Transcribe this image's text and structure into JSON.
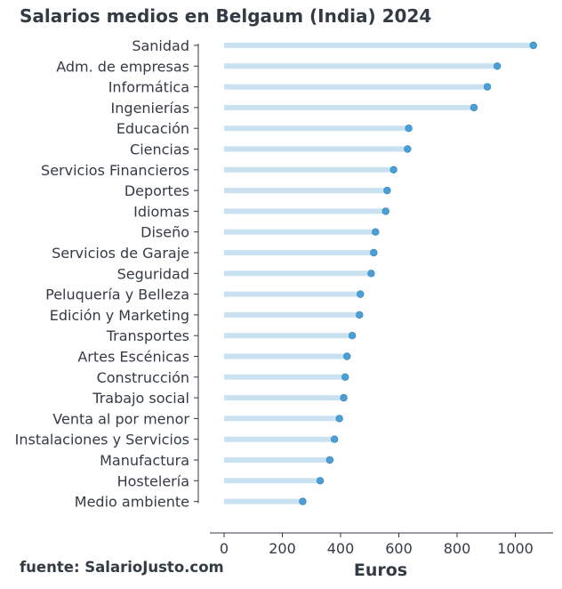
{
  "title": "Salarios medios en Belgaum (India) 2024",
  "source": "fuente: SalarioJusto.com",
  "chart_data": {
    "type": "lollipop",
    "title": "Salarios medios en Belgaum (India) 2024",
    "xlabel": "Euros",
    "ylabel": "",
    "xlim": [
      0,
      1100
    ],
    "xticks": [
      0,
      200,
      400,
      600,
      800,
      1000
    ],
    "grid": false,
    "categories": [
      "Sanidad",
      "Adm. de empresas",
      "Informática",
      "Ingenierías",
      "Educación",
      "Ciencias",
      "Servicios Financieros",
      "Deportes",
      "Idiomas",
      "Diseño",
      "Servicios de Garaje",
      "Seguridad",
      "Peluquería y Belleza",
      "Edición y Marketing",
      "Transportes",
      "Artes Escénicas",
      "Construcción",
      "Trabajo social",
      "Venta al por menor",
      "Instalaciones y Servicios",
      "Manufactura",
      "Hostelería",
      "Medio ambiente"
    ],
    "values": [
      1062,
      938,
      904,
      858,
      634,
      630,
      582,
      560,
      555,
      520,
      514,
      505,
      468,
      465,
      440,
      422,
      416,
      411,
      396,
      379,
      363,
      330,
      270
    ],
    "colors": {
      "stem": "#c9e1f1",
      "dot": "#4c9fd4",
      "dot_edge": "#3a8cc4",
      "axis": "#333b45"
    }
  }
}
